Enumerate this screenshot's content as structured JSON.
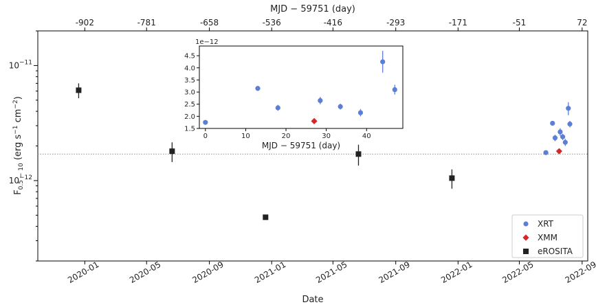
{
  "chart_data": [
    {
      "type": "scatter",
      "xlabel": "Date",
      "ylabel": "F_{0.5-10} (erg s^{-1} cm^{-2})",
      "ylabel_parts": {
        "main": "F",
        "sub": "0.5 − 10",
        "units_open": " (erg s",
        "exp1": "−1",
        "units_mid": " cm",
        "exp2": "−2",
        "units_close": ")"
      },
      "top_xlabel": "MJD − 59751 (day)",
      "yscale": "log",
      "ylim": [
        2e-13,
        2e-11
      ],
      "xlim": [
        "2019-10-01",
        "2022-09-12"
      ],
      "x_ticks": [
        "2020-01",
        "2020-05",
        "2020-09",
        "2021-01",
        "2021-05",
        "2021-09",
        "2022-01",
        "2022-05",
        "2022-09"
      ],
      "top_ticks": [
        "-902",
        "-781",
        "-658",
        "-536",
        "-416",
        "-293",
        "-171",
        "-51",
        "72"
      ],
      "y_ticks": [
        {
          "value": 1e-12,
          "base": "10",
          "exp": "−12"
        },
        {
          "value": 1e-11,
          "base": "10",
          "exp": "−11"
        }
      ],
      "reference_line": {
        "y": 1.7e-12,
        "style": "dotted"
      },
      "legend": {
        "placement": "bottom-right",
        "entries": [
          "XRT",
          "XMM",
          "eROSITA"
        ]
      },
      "series": [
        {
          "name": "XRT",
          "marker": "circle",
          "color": "#5b7fd6",
          "points": [
            {
              "x": "2022-06-22",
              "y": 1.75e-12,
              "err": 5e-14
            },
            {
              "x": "2022-07-05",
              "y": 3.15e-12,
              "err": 1.5e-13
            },
            {
              "x": "2022-07-10",
              "y": 2.35e-12,
              "err": 1.5e-13
            },
            {
              "x": "2022-07-20",
              "y": 2.65e-12,
              "err": 2e-13
            },
            {
              "x": "2022-07-25",
              "y": 2.4e-12,
              "err": 1.5e-13
            },
            {
              "x": "2022-07-30",
              "y": 2.15e-12,
              "err": 1.5e-13
            },
            {
              "x": "2022-08-05",
              "y": 4.25e-12,
              "err": 5.5e-13
            },
            {
              "x": "2022-08-08",
              "y": 3.1e-12,
              "err": 2e-13
            }
          ]
        },
        {
          "name": "XMM",
          "marker": "diamond",
          "color": "#d62728",
          "points": [
            {
              "x": "2022-07-18",
              "y": 1.8e-12,
              "err": 0
            }
          ]
        },
        {
          "name": "eROSITA",
          "marker": "square",
          "color": "#222222",
          "points": [
            {
              "x": "2019-12-20",
              "y": 6.1e-12,
              "err": 9e-13
            },
            {
              "x": "2020-06-20",
              "y": 1.8e-12,
              "err": 3.5e-13
            },
            {
              "x": "2020-12-20",
              "y": 4.8e-13,
              "err": 2e-14
            },
            {
              "x": "2021-06-20",
              "y": 1.7e-12,
              "err": 3.5e-13
            },
            {
              "x": "2021-12-20",
              "y": 1.05e-12,
              "err": 2e-13
            }
          ]
        }
      ]
    },
    {
      "type": "scatter",
      "xlabel": "MJD − 59751 (day)",
      "ylabel": "",
      "ylim": [
        1.5,
        4.9
      ],
      "xlim": [
        -1.5,
        49
      ],
      "scale_label": "1e−12",
      "x_ticks": [
        0,
        10,
        20,
        30,
        40
      ],
      "y_ticks": [
        "1.5",
        "2.0",
        "2.5",
        "3.0",
        "3.5",
        "4.0",
        "4.5"
      ],
      "series": [
        {
          "name": "XRT",
          "marker": "circle",
          "color": "#5b7fd6",
          "points": [
            {
              "x": 0,
              "y": 1.75,
              "err": 0.05
            },
            {
              "x": 13,
              "y": 3.15,
              "err": 0.1
            },
            {
              "x": 18,
              "y": 2.35,
              "err": 0.12
            },
            {
              "x": 28.5,
              "y": 2.65,
              "err": 0.15
            },
            {
              "x": 33.5,
              "y": 2.4,
              "err": 0.12
            },
            {
              "x": 38.5,
              "y": 2.15,
              "err": 0.15
            },
            {
              "x": 44,
              "y": 4.25,
              "err": 0.45
            },
            {
              "x": 47,
              "y": 3.1,
              "err": 0.2
            }
          ]
        },
        {
          "name": "XMM",
          "marker": "diamond",
          "color": "#d62728",
          "points": [
            {
              "x": 27,
              "y": 1.8,
              "err": 0
            }
          ]
        }
      ]
    }
  ]
}
